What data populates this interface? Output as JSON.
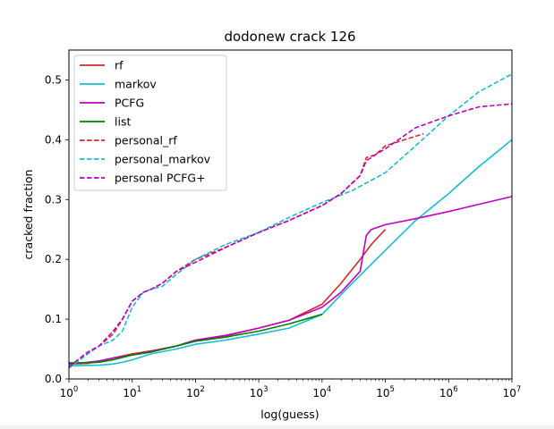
{
  "chart_data": {
    "type": "line",
    "title": "dodonew crack 126",
    "xlabel": "log(guess)",
    "ylabel": "cracked fraction",
    "xscale": "log10",
    "xlim": [
      1,
      10000000
    ],
    "ylim": [
      0,
      0.55
    ],
    "xticks": [
      {
        "exp": 0,
        "label": "10",
        "sup": "0"
      },
      {
        "exp": 1,
        "label": "10",
        "sup": "1"
      },
      {
        "exp": 2,
        "label": "10",
        "sup": "2"
      },
      {
        "exp": 3,
        "label": "10",
        "sup": "3"
      },
      {
        "exp": 4,
        "label": "10",
        "sup": "4"
      },
      {
        "exp": 5,
        "label": "10",
        "sup": "5"
      },
      {
        "exp": 6,
        "label": "10",
        "sup": "6"
      },
      {
        "exp": 7,
        "label": "10",
        "sup": "7"
      }
    ],
    "yticks": [
      {
        "value": 0.0,
        "label": "0.0"
      },
      {
        "value": 0.1,
        "label": "0.1"
      },
      {
        "value": 0.2,
        "label": "0.2"
      },
      {
        "value": 0.3,
        "label": "0.3"
      },
      {
        "value": 0.4,
        "label": "0.4"
      },
      {
        "value": 0.5,
        "label": "0.5"
      }
    ],
    "grid": false,
    "legend_position": "top-left",
    "series": [
      {
        "name": "rf",
        "color": "#d62728",
        "style": "solid",
        "x": [
          1,
          2,
          3,
          5,
          10,
          20,
          50,
          100,
          300,
          1000,
          3000,
          10000,
          20000,
          40000,
          60000,
          100000
        ],
        "y": [
          0.025,
          0.026,
          0.03,
          0.035,
          0.042,
          0.047,
          0.055,
          0.065,
          0.072,
          0.085,
          0.098,
          0.125,
          0.16,
          0.2,
          0.225,
          0.25
        ]
      },
      {
        "name": "markov",
        "color": "#17becf",
        "style": "solid",
        "x": [
          1,
          3,
          5,
          7,
          10,
          20,
          50,
          100,
          300,
          1000,
          3000,
          10000,
          30000,
          100000,
          300000,
          1000000,
          3000000,
          10000000
        ],
        "y": [
          0.022,
          0.023,
          0.025,
          0.028,
          0.032,
          0.042,
          0.05,
          0.058,
          0.065,
          0.075,
          0.085,
          0.108,
          0.16,
          0.215,
          0.265,
          0.31,
          0.355,
          0.4
        ]
      },
      {
        "name": "PCFG",
        "color": "#bf00bf",
        "style": "solid",
        "x": [
          1,
          2,
          3,
          5,
          10,
          20,
          50,
          100,
          300,
          1000,
          3000,
          10000,
          20000,
          40000,
          50000,
          60000,
          100000,
          300000,
          1000000,
          3000000,
          10000000
        ],
        "y": [
          0.025,
          0.028,
          0.03,
          0.035,
          0.04,
          0.046,
          0.055,
          0.065,
          0.073,
          0.085,
          0.098,
          0.12,
          0.145,
          0.18,
          0.24,
          0.25,
          0.258,
          0.268,
          0.28,
          0.292,
          0.305
        ]
      },
      {
        "name": "list",
        "color": "#008000",
        "style": "solid",
        "x": [
          1,
          2,
          3,
          5,
          10,
          20,
          50,
          100,
          300,
          1000,
          3000,
          10000
        ],
        "y": [
          0.027,
          0.027,
          0.028,
          0.032,
          0.04,
          0.045,
          0.055,
          0.063,
          0.07,
          0.08,
          0.092,
          0.108
        ]
      },
      {
        "name": "personal_rf",
        "color": "#d62728",
        "style": "dashed",
        "x": [
          1,
          1.5,
          2,
          3,
          5,
          7,
          10,
          15,
          20,
          30,
          50,
          100,
          300,
          1000,
          3000,
          10000,
          20000,
          40000,
          50000,
          70000,
          100000,
          200000,
          400000
        ],
        "y": [
          0.02,
          0.035,
          0.045,
          0.055,
          0.075,
          0.1,
          0.13,
          0.145,
          0.15,
          0.16,
          0.18,
          0.2,
          0.22,
          0.245,
          0.265,
          0.29,
          0.31,
          0.34,
          0.37,
          0.375,
          0.39,
          0.4,
          0.41
        ]
      },
      {
        "name": "personal_markov",
        "color": "#17becf",
        "style": "dashed",
        "x": [
          1,
          2,
          3,
          5,
          7,
          10,
          15,
          20,
          30,
          50,
          100,
          300,
          1000,
          3000,
          10000,
          30000,
          100000,
          300000,
          1000000,
          3000000,
          10000000
        ],
        "y": [
          0.018,
          0.042,
          0.055,
          0.065,
          0.08,
          0.12,
          0.145,
          0.15,
          0.155,
          0.175,
          0.2,
          0.225,
          0.245,
          0.27,
          0.295,
          0.315,
          0.345,
          0.39,
          0.44,
          0.48,
          0.51
        ]
      },
      {
        "name": "personal PCFG+",
        "color": "#bf00bf",
        "style": "dashed",
        "x": [
          1,
          1.5,
          2,
          3,
          5,
          7,
          10,
          15,
          20,
          30,
          50,
          100,
          300,
          1000,
          3000,
          10000,
          20000,
          40000,
          50000,
          70000,
          100000,
          300000,
          1000000,
          3000000,
          10000000
        ],
        "y": [
          0.02,
          0.035,
          0.045,
          0.055,
          0.08,
          0.1,
          0.13,
          0.145,
          0.15,
          0.16,
          0.18,
          0.195,
          0.22,
          0.245,
          0.265,
          0.29,
          0.31,
          0.34,
          0.365,
          0.375,
          0.385,
          0.42,
          0.44,
          0.455,
          0.46
        ]
      }
    ]
  }
}
